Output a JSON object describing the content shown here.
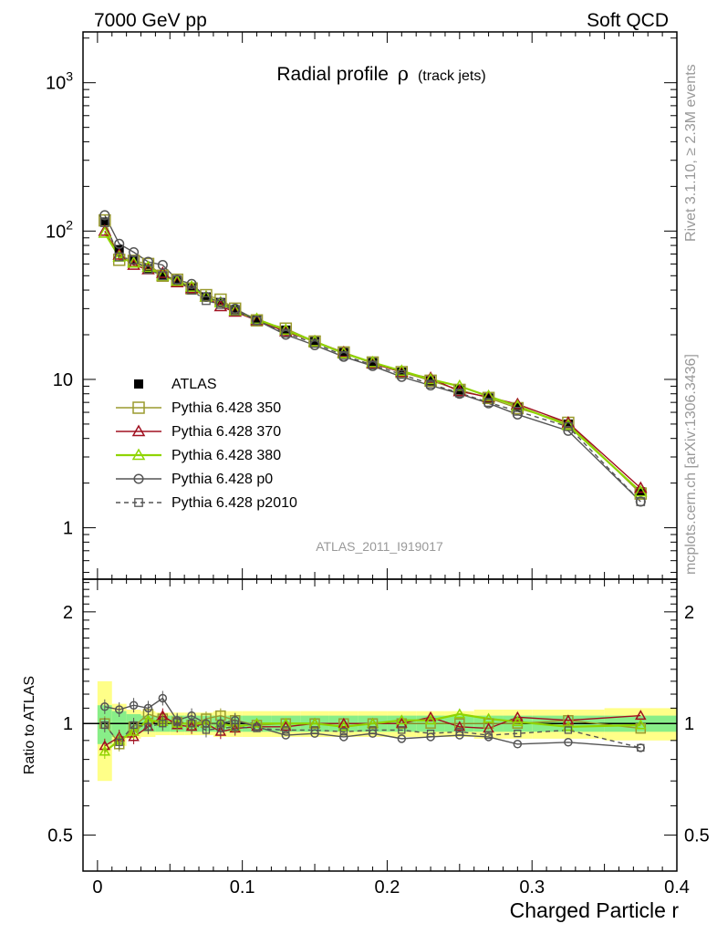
{
  "header": {
    "left": "7000 GeV pp",
    "right": "Soft QCD"
  },
  "side_labels": {
    "top": "Rivet 3.1.10, ≥ 2.3M events",
    "bottom": "mcplots.cern.ch [arXiv:1306.3436]"
  },
  "watermark": "ATLAS_2011_I919017",
  "colors": {
    "p350": "#9a9a2e",
    "p370": "#a01020",
    "p380": "#8fd400",
    "p0": "#555555",
    "p2010": "#555555",
    "atlas": "#000000",
    "band_inner": "#88ee88",
    "band_outer": "#ffff88"
  },
  "chart_data": [
    {
      "type": "scatter",
      "title_main": "Radial profile",
      "title_symbol": "ρ",
      "title_sub": "(track jets)",
      "xlabel": "Charged Particle r",
      "xlim": [
        -0.01,
        0.4
      ],
      "ylim": [
        0.45,
        2200
      ],
      "yscale": "log",
      "x_tick_labels": [
        "0",
        "0.1",
        "0.2",
        "0.3",
        "0.4"
      ],
      "y_tick_labels": [
        "1",
        "10",
        "10^2",
        "10^3"
      ],
      "legend_position": "center-left",
      "x": [
        0.005,
        0.015,
        0.025,
        0.035,
        0.045,
        0.055,
        0.065,
        0.075,
        0.085,
        0.095,
        0.11,
        0.13,
        0.15,
        0.17,
        0.19,
        0.21,
        0.23,
        0.25,
        0.27,
        0.29,
        0.325,
        0.375
      ],
      "series": [
        {
          "name": "ATLAS",
          "key": "atlas",
          "values": [
            115,
            75,
            64,
            56,
            50,
            46,
            42,
            36,
            33,
            29.5,
            25.5,
            21.5,
            18,
            15.2,
            13,
            11.2,
            9.8,
            8.5,
            7.5,
            6.5,
            5.0,
            1.75
          ]
        },
        {
          "name": "Pythia 6.428 350",
          "key": "p350",
          "values": [
            118,
            64,
            63,
            60,
            50,
            47,
            41,
            37,
            34.5,
            30,
            25,
            22,
            18,
            15.2,
            13,
            11.2,
            9.8,
            8.5,
            7.5,
            6.4,
            5.1,
            1.7
          ]
        },
        {
          "name": "Pythia 6.428 370",
          "key": "p370",
          "values": [
            100,
            69,
            59,
            55,
            52,
            45,
            41,
            36,
            31,
            28.5,
            25,
            21,
            18,
            15.2,
            12.8,
            11.2,
            10.2,
            8.3,
            7.6,
            6.8,
            5.1,
            1.85
          ]
        },
        {
          "name": "Pythia 6.428 380",
          "key": "p380",
          "values": [
            97,
            67,
            61,
            57,
            50,
            46,
            42,
            36,
            33,
            29,
            25.5,
            21.5,
            18,
            15,
            13,
            11.4,
            10,
            9,
            7.7,
            6.6,
            4.9,
            1.75
          ]
        },
        {
          "name": "Pythia 6.428 p0",
          "key": "p0",
          "values": [
            128,
            82,
            72,
            62,
            59,
            47,
            44,
            36,
            33,
            30,
            25,
            20,
            17,
            14.2,
            12.3,
            10.4,
            9.1,
            8.0,
            6.9,
            5.8,
            4.5,
            1.5
          ]
        },
        {
          "name": "Pythia 6.428 p2010",
          "key": "p2010",
          "values": [
            114,
            67,
            64,
            55,
            50,
            47,
            40,
            34,
            32,
            29,
            25,
            20.5,
            17.5,
            14.5,
            12.5,
            10.8,
            9.3,
            8.1,
            7.0,
            6.1,
            4.8,
            1.5
          ]
        }
      ]
    },
    {
      "type": "scatter",
      "ylabel": "Ratio to ATLAS",
      "xlabel": "Charged Particle r",
      "xlim": [
        -0.01,
        0.4
      ],
      "ylim": [
        0.4,
        2.45
      ],
      "yscale": "log",
      "y_tick_labels": [
        "0.5",
        "1",
        "2"
      ],
      "band": {
        "x_edges": [
          0.0,
          0.01,
          0.02,
          0.03,
          0.04,
          0.05,
          0.06,
          0.07,
          0.08,
          0.09,
          0.1,
          0.12,
          0.14,
          0.16,
          0.18,
          0.2,
          0.22,
          0.24,
          0.26,
          0.28,
          0.3,
          0.35,
          0.4
        ],
        "inner": [
          0.12,
          0.08,
          0.06,
          0.05,
          0.05,
          0.05,
          0.05,
          0.05,
          0.05,
          0.05,
          0.05,
          0.05,
          0.05,
          0.05,
          0.05,
          0.05,
          0.05,
          0.05,
          0.05,
          0.05,
          0.05,
          0.05
        ],
        "outer": [
          0.3,
          0.13,
          0.09,
          0.08,
          0.07,
          0.07,
          0.07,
          0.07,
          0.08,
          0.08,
          0.08,
          0.08,
          0.08,
          0.08,
          0.08,
          0.08,
          0.08,
          0.08,
          0.09,
          0.09,
          0.09,
          0.1
        ]
      },
      "series": [
        {
          "name": "Pythia 6.428 350",
          "key": "p350",
          "values": [
            1.0,
            0.88,
            0.98,
            1.06,
            1.03,
            1.01,
            0.99,
            1.03,
            1.05,
            1.02,
            0.99,
            1.0,
            1.0,
            1.0,
            1.0,
            1.0,
            1.0,
            1.0,
            1.0,
            1.0,
            1.02,
            0.97
          ]
        },
        {
          "name": "Pythia 6.428 370",
          "key": "p370",
          "values": [
            0.87,
            0.92,
            0.92,
            0.98,
            1.05,
            0.99,
            0.98,
            1.0,
            0.95,
            0.97,
            0.98,
            0.98,
            1.0,
            1.0,
            1.0,
            1.0,
            1.04,
            0.98,
            0.97,
            1.04,
            1.02,
            1.05
          ]
        },
        {
          "name": "Pythia 6.428 380",
          "key": "p380",
          "values": [
            0.84,
            0.9,
            0.95,
            1.02,
            1.01,
            1.0,
            1.0,
            1.0,
            1.0,
            0.98,
            1.0,
            1.0,
            1.0,
            0.98,
            1.0,
            1.02,
            1.02,
            1.06,
            1.03,
            1.01,
            0.98,
            0.99
          ]
        },
        {
          "name": "Pythia 6.428 p0",
          "key": "p0",
          "values": [
            1.11,
            1.09,
            1.12,
            1.1,
            1.17,
            1.02,
            1.05,
            1.0,
            1.0,
            1.02,
            0.98,
            0.93,
            0.94,
            0.92,
            0.94,
            0.91,
            0.92,
            0.93,
            0.92,
            0.88,
            0.89,
            0.86
          ]
        },
        {
          "name": "Pythia 6.428 p2010",
          "key": "p2010",
          "values": [
            0.99,
            0.89,
            0.99,
            0.98,
            1.0,
            1.01,
            1.0,
            0.96,
            0.97,
            0.98,
            0.97,
            0.96,
            0.96,
            0.95,
            0.96,
            0.96,
            0.94,
            0.95,
            0.93,
            0.94,
            0.96,
            0.86
          ]
        }
      ]
    }
  ]
}
